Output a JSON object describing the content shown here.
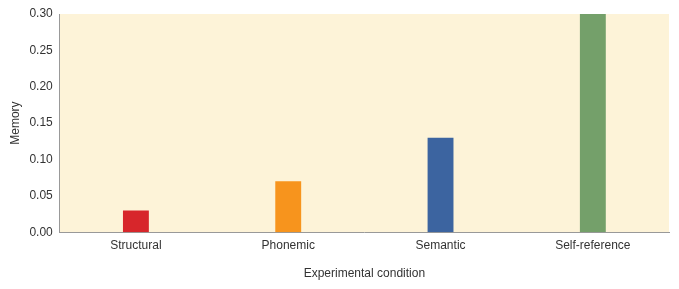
{
  "chart_data": {
    "type": "bar",
    "categories": [
      "Structural",
      "Phonemic",
      "Semantic",
      "Self-reference"
    ],
    "values": [
      0.03,
      0.07,
      0.13,
      0.3
    ],
    "colors": [
      "#d7262b",
      "#f7941d",
      "#3c64a0",
      "#74a06a"
    ],
    "x_label": "Experimental condition",
    "y_label": "Memory",
    "ylim": [
      0,
      0.3
    ],
    "yticks": [
      {
        "value": 0,
        "label": "0.00"
      },
      {
        "value": 0.05,
        "label": "0.05"
      },
      {
        "value": 0.1,
        "label": "0.10"
      },
      {
        "value": 0.15,
        "label": "0.15"
      },
      {
        "value": 0.2,
        "label": "0.20"
      },
      {
        "value": 0.25,
        "label": "0.25"
      },
      {
        "value": 0.3,
        "label": "0.30"
      }
    ],
    "grid": false
  }
}
